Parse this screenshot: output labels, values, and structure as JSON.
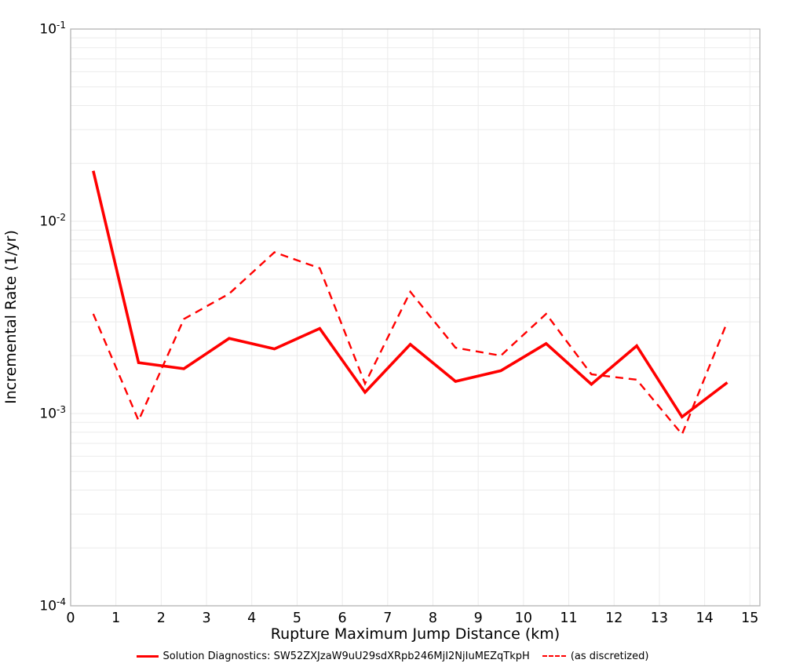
{
  "colors": {
    "line": "#ff0000",
    "grid": "#ebebeb",
    "border": "#b3b3b3",
    "text": "#000000",
    "background": "#ffffff"
  },
  "chart_data": {
    "type": "line",
    "title": "",
    "xlabel": "Rupture Maximum Jump Distance (km)",
    "ylabel": "Incremental Rate (1/yr)",
    "yscale": "log",
    "xlim": [
      0,
      15.22
    ],
    "ylim": [
      0.0001,
      0.1
    ],
    "x_ticks": [
      0,
      1,
      2,
      3,
      4,
      5,
      6,
      7,
      8,
      9,
      10,
      11,
      12,
      13,
      14,
      15
    ],
    "y_tick_exponents": [
      -1,
      -2,
      -3,
      -4
    ],
    "grid": true,
    "legend_position": "bottom",
    "x": [
      0.5,
      1.5,
      2.5,
      3.5,
      4.5,
      5.5,
      6.5,
      7.5,
      8.5,
      9.5,
      10.5,
      11.5,
      12.5,
      13.5,
      14.5
    ],
    "series": [
      {
        "name": "Solution Diagnostics: SW52ZXJzaW9uU29sdXRpb246MjI2NjIuMEZqTkpH",
        "style": "solid",
        "color": "#ff0000",
        "values": [
          0.0183,
          0.00184,
          0.00171,
          0.00246,
          0.00217,
          0.00277,
          0.00129,
          0.00229,
          0.00147,
          0.00167,
          0.00231,
          0.00142,
          0.00225,
          0.00096,
          0.00145
        ]
      },
      {
        "name": "(as discretized)",
        "style": "dashed",
        "color": "#ff0000",
        "values": [
          0.0033,
          0.00092,
          0.0031,
          0.0042,
          0.0069,
          0.0057,
          0.00143,
          0.0043,
          0.0022,
          0.002,
          0.0033,
          0.0016,
          0.0015,
          0.00078,
          0.003
        ]
      }
    ]
  }
}
